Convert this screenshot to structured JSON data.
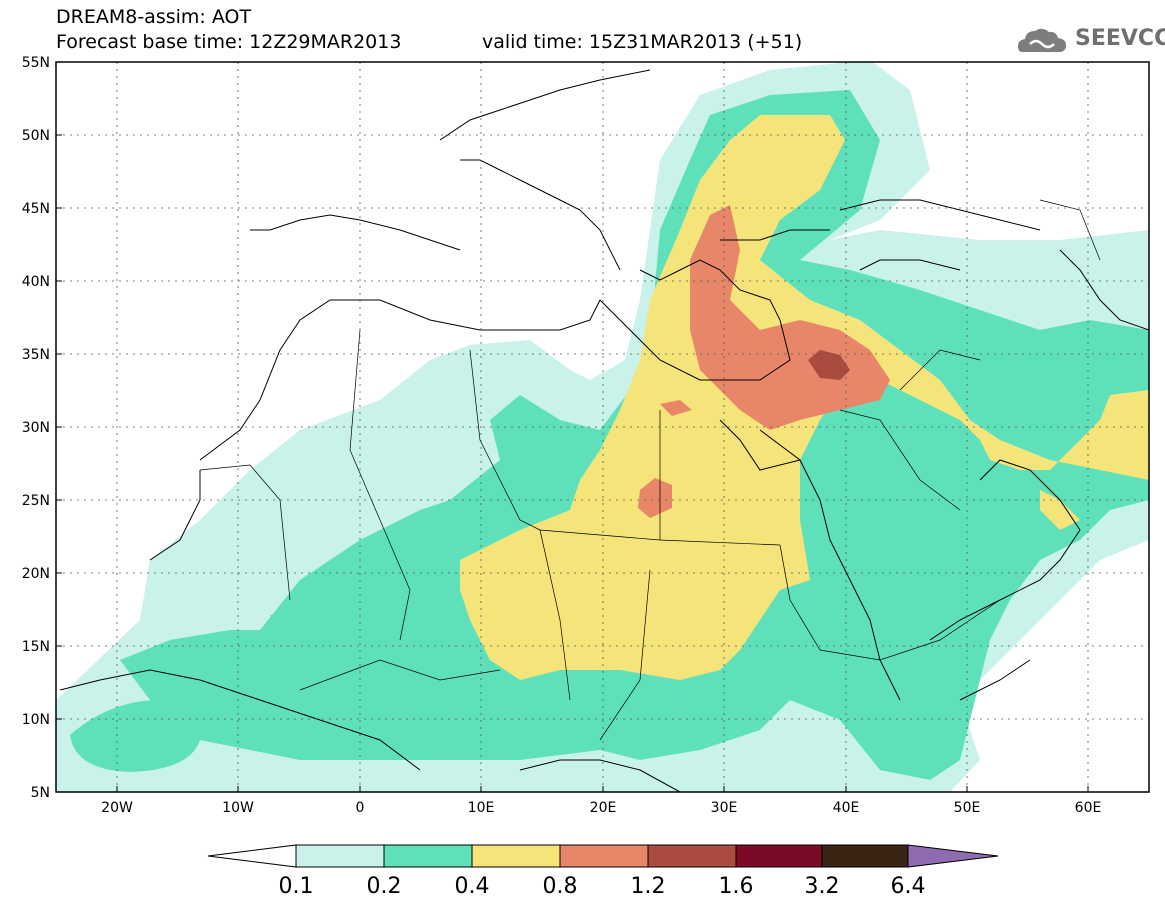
{
  "header": {
    "title": "DREAM8-assim: AOT",
    "subtitle": "Forecast base time: 12Z29MAR2013",
    "valid": "valid time: 15Z31MAR2013 (+51)",
    "logo_text": "SEEVCCC"
  },
  "map": {
    "lon_range": [
      -25,
      65
    ],
    "lat_range": [
      5,
      55
    ],
    "lat_ticks": [
      "55N",
      "50N",
      "45N",
      "40N",
      "35N",
      "30N",
      "25N",
      "20N",
      "15N",
      "10N",
      "5N"
    ],
    "lon_ticks": [
      "20W",
      "10W",
      "0",
      "10E",
      "20E",
      "30E",
      "40E",
      "50E",
      "60E"
    ],
    "grid": true
  },
  "colorbar": {
    "labels": [
      "0.1",
      "0.2",
      "0.4",
      "0.8",
      "1.2",
      "1.6",
      "3.2",
      "6.4"
    ],
    "colors": [
      "#c8f2ea",
      "#5ee1ba",
      "#f5e47a",
      "#e8866a",
      "#a94b3f",
      "#7a0a26",
      "#3a2515",
      "#8f6bb0"
    ]
  }
}
